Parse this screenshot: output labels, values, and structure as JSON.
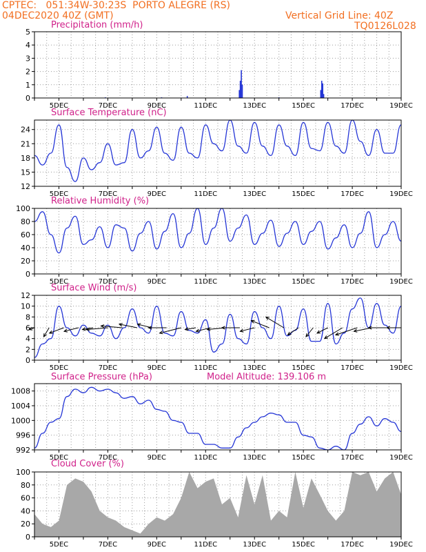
{
  "header": {
    "line1": "CPTEC:   051:34W-30:23S  PORTO ALEGRE (RS)",
    "line2": "04DEC2020 40Z (GMT)",
    "grid_note": "Vertical Grid Line: 40Z",
    "run_id": "TQ0126L028"
  },
  "colors": {
    "header": "#f26f21",
    "title": "#d0218a",
    "series": "#2334d6",
    "cloud_fill": "#a8a8a8",
    "grid": "#9a9a9a",
    "axis": "#000000"
  },
  "x_axis": {
    "start_day": 4,
    "end_day": 19,
    "ticks": [
      {
        "day": 5,
        "label": "5DEC"
      },
      {
        "day": 7,
        "label": "7DEC"
      },
      {
        "day": 9,
        "label": "9DEC"
      },
      {
        "day": 11,
        "label": "11DEC"
      },
      {
        "day": 13,
        "label": "13DEC"
      },
      {
        "day": 15,
        "label": "15DEC"
      },
      {
        "day": 17,
        "label": "17DEC"
      },
      {
        "day": 19,
        "label": "19DEC"
      }
    ]
  },
  "chart_data": [
    {
      "id": "precip",
      "type": "bar",
      "title": "Precipitation (mm/h)",
      "ylim": [
        0,
        5
      ],
      "yticks": [
        0,
        1,
        2,
        3,
        4,
        5
      ],
      "x": [
        10.25,
        12.38,
        12.42,
        12.46,
        12.5,
        15.71,
        15.75,
        15.79,
        15.83,
        6.9,
        9.2,
        14.0
      ],
      "values": [
        0.15,
        0.6,
        1.3,
        2.1,
        1.0,
        0.6,
        1.3,
        1.1,
        0.3,
        0.05,
        0.05,
        0.05
      ]
    },
    {
      "id": "temp",
      "type": "line",
      "title": "Surface Temperature (nC)",
      "ylim": [
        12,
        26
      ],
      "yticks": [
        12,
        15,
        18,
        21,
        24
      ],
      "x": [
        4.0,
        4.33,
        4.67,
        5.0,
        5.33,
        5.67,
        6.0,
        6.33,
        6.67,
        7.0,
        7.33,
        7.67,
        8.0,
        8.33,
        8.67,
        9.0,
        9.33,
        9.67,
        10.0,
        10.33,
        10.67,
        11.0,
        11.33,
        11.67,
        12.0,
        12.33,
        12.67,
        13.0,
        13.33,
        13.67,
        14.0,
        14.33,
        14.67,
        15.0,
        15.33,
        15.67,
        16.0,
        16.33,
        16.67,
        17.0,
        17.33,
        17.67,
        18.0,
        18.33,
        18.67,
        19.0
      ],
      "values": [
        18.5,
        16.5,
        19.0,
        25.0,
        16.0,
        13.0,
        18.0,
        15.5,
        17.0,
        21.0,
        16.5,
        17.0,
        24.0,
        18.0,
        19.5,
        24.5,
        19.0,
        17.5,
        24.5,
        19.0,
        18.0,
        25.0,
        21.0,
        19.5,
        26.0,
        20.5,
        19.0,
        25.5,
        20.5,
        18.5,
        25.0,
        20.5,
        18.5,
        25.5,
        20.0,
        19.5,
        25.5,
        20.5,
        19.0,
        26.0,
        21.5,
        18.5,
        24.0,
        19.0,
        19.0,
        25.0
      ]
    },
    {
      "id": "rh",
      "type": "line",
      "title": "Relative Humidity (%)",
      "ylim": [
        0,
        100
      ],
      "yticks": [
        0,
        20,
        40,
        60,
        80,
        100
      ],
      "x": [
        4.0,
        4.33,
        4.67,
        5.0,
        5.33,
        5.67,
        6.0,
        6.33,
        6.67,
        7.0,
        7.33,
        7.67,
        8.0,
        8.33,
        8.67,
        9.0,
        9.33,
        9.67,
        10.0,
        10.33,
        10.67,
        11.0,
        11.33,
        11.67,
        12.0,
        12.33,
        12.67,
        13.0,
        13.33,
        13.67,
        14.0,
        14.33,
        14.67,
        15.0,
        15.33,
        15.67,
        16.0,
        16.33,
        16.67,
        17.0,
        17.33,
        17.67,
        18.0,
        18.33,
        18.67,
        19.0
      ],
      "values": [
        80,
        95,
        60,
        32,
        70,
        88,
        45,
        52,
        72,
        40,
        75,
        70,
        35,
        62,
        80,
        38,
        65,
        92,
        40,
        62,
        100,
        45,
        70,
        100,
        50,
        70,
        90,
        45,
        62,
        82,
        42,
        62,
        80,
        45,
        65,
        80,
        38,
        55,
        75,
        40,
        62,
        95,
        40,
        60,
        80,
        50
      ]
    },
    {
      "id": "wind",
      "type": "line",
      "title": "Surface Wind (m/s)",
      "ylim": [
        0,
        12
      ],
      "yticks": [
        0,
        2,
        4,
        6,
        8,
        10,
        12
      ],
      "x": [
        4.0,
        4.33,
        4.67,
        5.0,
        5.33,
        5.67,
        6.0,
        6.33,
        6.67,
        7.0,
        7.33,
        7.67,
        8.0,
        8.33,
        8.67,
        9.0,
        9.33,
        9.67,
        10.0,
        10.33,
        10.67,
        11.0,
        11.33,
        11.67,
        12.0,
        12.33,
        12.67,
        13.0,
        13.33,
        13.67,
        14.0,
        14.33,
        14.67,
        15.0,
        15.33,
        15.67,
        16.0,
        16.33,
        16.67,
        17.0,
        17.33,
        17.67,
        18.0,
        18.33,
        18.67,
        19.0
      ],
      "values": [
        0.5,
        3.0,
        4.0,
        10.0,
        6.0,
        4.5,
        6.5,
        5.0,
        4.5,
        6.5,
        4.0,
        6.0,
        9.5,
        6.0,
        5.0,
        10.0,
        5.0,
        4.5,
        9.0,
        5.5,
        5.0,
        7.5,
        1.5,
        3.0,
        8.5,
        4.0,
        3.0,
        9.0,
        6.0,
        4.0,
        10.0,
        4.5,
        5.5,
        9.5,
        3.5,
        3.5,
        10.5,
        3.0,
        5.0,
        9.5,
        11.5,
        6.0,
        10.5,
        6.5,
        5.0,
        10.0
      ],
      "arrows": {
        "x": [
          4.0,
          4.6,
          5.2,
          5.8,
          6.4,
          7.0,
          7.6,
          8.2,
          8.8,
          9.4,
          10.0,
          10.6,
          11.2,
          11.8,
          12.4,
          13.0,
          13.6,
          14.2,
          14.8,
          15.4,
          16.0,
          16.6,
          17.2,
          17.8,
          18.4,
          19.0
        ],
        "u": [
          -3,
          -3,
          -8,
          -8,
          -6,
          -12,
          -12,
          -10,
          -8,
          -10,
          -12,
          -6,
          -8,
          -10,
          -10,
          -8,
          -10,
          -10,
          -6,
          -4,
          -6,
          -10,
          -12,
          -10,
          -10,
          -8
        ],
        "v": [
          -1,
          -5,
          -3,
          -2,
          -1,
          -1,
          1,
          2,
          2,
          0,
          -3,
          -1,
          -2,
          -1,
          0,
          -2,
          4,
          6,
          -4,
          -5,
          -3,
          -6,
          -4,
          -2,
          0,
          0
        ]
      }
    },
    {
      "id": "pressure",
      "type": "line",
      "title": "Surface Pressure (hPa)",
      "annotation": "Model Altitude: 139.106 m",
      "ylim": [
        992,
        1010
      ],
      "yticks": [
        992,
        996,
        1000,
        1004,
        1008
      ],
      "x": [
        4.0,
        4.33,
        4.67,
        5.0,
        5.33,
        5.67,
        6.0,
        6.33,
        6.67,
        7.0,
        7.33,
        7.67,
        8.0,
        8.33,
        8.67,
        9.0,
        9.33,
        9.67,
        10.0,
        10.33,
        10.67,
        11.0,
        11.33,
        11.67,
        12.0,
        12.33,
        12.67,
        13.0,
        13.33,
        13.67,
        14.0,
        14.33,
        14.67,
        15.0,
        15.33,
        15.67,
        16.0,
        16.33,
        16.67,
        17.0,
        17.33,
        17.67,
        18.0,
        18.33,
        18.67,
        19.0
      ],
      "values": [
        992.5,
        996.5,
        999.5,
        1000.5,
        1006.5,
        1008.5,
        1007.5,
        1009.0,
        1008.0,
        1008.5,
        1007.5,
        1006.0,
        1006.5,
        1004.5,
        1005.5,
        1003.0,
        1002.5,
        1000.0,
        999.5,
        996.5,
        996.5,
        993.5,
        993.5,
        992.5,
        992.5,
        995.5,
        998.0,
        999.5,
        1001.0,
        1002.0,
        1001.5,
        999.5,
        999.5,
        996.0,
        995.5,
        992.5,
        992.0,
        993.0,
        992.0,
        996.5,
        999.0,
        1001.0,
        998.5,
        1000.5,
        999.5,
        997.0
      ]
    },
    {
      "id": "cloud",
      "type": "area",
      "title": "Cloud Cover (%)",
      "ylim": [
        0,
        100
      ],
      "yticks": [
        0,
        20,
        40,
        60,
        80,
        100
      ],
      "x": [
        4.0,
        4.33,
        4.67,
        5.0,
        5.33,
        5.67,
        6.0,
        6.33,
        6.67,
        7.0,
        7.33,
        7.67,
        8.0,
        8.33,
        8.67,
        9.0,
        9.33,
        9.67,
        10.0,
        10.33,
        10.67,
        11.0,
        11.33,
        11.67,
        12.0,
        12.33,
        12.67,
        13.0,
        13.33,
        13.67,
        14.0,
        14.33,
        14.67,
        15.0,
        15.33,
        15.67,
        16.0,
        16.33,
        16.67,
        17.0,
        17.33,
        17.67,
        18.0,
        18.33,
        18.67,
        19.0
      ],
      "values": [
        35,
        20,
        15,
        25,
        80,
        90,
        85,
        70,
        40,
        30,
        25,
        15,
        10,
        5,
        20,
        30,
        25,
        35,
        60,
        100,
        75,
        85,
        90,
        50,
        60,
        30,
        95,
        50,
        95,
        25,
        40,
        30,
        100,
        45,
        90,
        65,
        40,
        25,
        40,
        100,
        95,
        100,
        70,
        90,
        100,
        65
      ]
    }
  ]
}
